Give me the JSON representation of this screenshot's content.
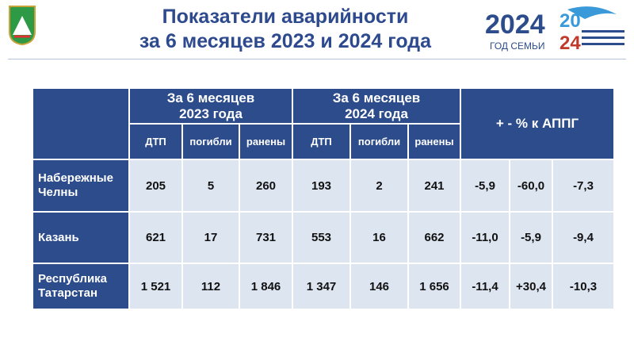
{
  "header": {
    "title_lines": [
      "Показатели аварийности",
      "за 6 месяцев 2023 и 2024 года"
    ],
    "logo": {
      "year": "2024",
      "caption": "ГОД СЕМЬИ",
      "year_top": "20",
      "year_bottom": "24"
    }
  },
  "table": {
    "groups": [
      [
        "За 6 месяцев",
        "2023 года"
      ],
      [
        "За 6 месяцев",
        "2024 года"
      ],
      [
        "+ - % к АППГ"
      ]
    ],
    "subheader": [
      "ДТП",
      "погибли",
      "ранены",
      "ДТП",
      "погибли",
      "ранены"
    ],
    "rows": [
      {
        "label": [
          "Набережные",
          "Челны"
        ],
        "values": [
          "205",
          "5",
          "260",
          "193",
          "2",
          "241",
          "-5,9",
          "-60,0",
          "-7,3"
        ]
      },
      {
        "label": [
          "Казань"
        ],
        "values": [
          "621",
          "17",
          "731",
          "553",
          "16",
          "662",
          "-11,0",
          "-5,9",
          "-9,4"
        ]
      },
      {
        "label": [
          "Республика",
          "Татарстан"
        ],
        "values": [
          "1 521",
          "112",
          "1 846",
          "1 347",
          "146",
          "1 656",
          "-11,4",
          "+30,4",
          "-10,3"
        ]
      }
    ]
  }
}
